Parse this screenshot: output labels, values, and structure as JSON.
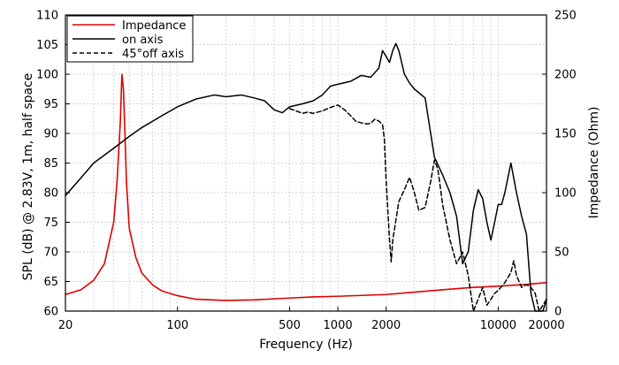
{
  "chart_data": {
    "type": "line",
    "xlabel": "Frequency (Hz)",
    "ylabel_left": "SPL (dB) @ 2.83V, 1m, half space",
    "ylabel_right": "Impedance (Ohm)",
    "x_scale": "log",
    "xlim": [
      20,
      20000
    ],
    "ylim_left": [
      60,
      110
    ],
    "ylim_right": [
      0,
      250
    ],
    "grid": true,
    "legend_position": "top-left",
    "x_tick_labels": [
      "20",
      "100",
      "500",
      "1000",
      "2000",
      "10000",
      "20000"
    ],
    "x_tick_values": [
      20,
      100,
      500,
      1000,
      2000,
      10000,
      20000
    ],
    "y_left_ticks": [
      60,
      65,
      70,
      75,
      80,
      85,
      90,
      95,
      100,
      105,
      110
    ],
    "y_right_ticks": [
      0,
      50,
      100,
      150,
      200,
      250
    ],
    "series": [
      {
        "name": "Impedance",
        "axis": "right",
        "color": "#e00000",
        "style": "solid",
        "points": [
          [
            20,
            14
          ],
          [
            25,
            18
          ],
          [
            30,
            26
          ],
          [
            35,
            40
          ],
          [
            40,
            75
          ],
          [
            42,
            110
          ],
          [
            44,
            160
          ],
          [
            45,
            200
          ],
          [
            46,
            187
          ],
          [
            47,
            150
          ],
          [
            48,
            110
          ],
          [
            50,
            70
          ],
          [
            55,
            45
          ],
          [
            60,
            32
          ],
          [
            70,
            22
          ],
          [
            80,
            17
          ],
          [
            100,
            13
          ],
          [
            130,
            10
          ],
          [
            200,
            9
          ],
          [
            300,
            9.5
          ],
          [
            500,
            11
          ],
          [
            700,
            12
          ],
          [
            1000,
            12.5
          ],
          [
            2000,
            14
          ],
          [
            3000,
            16
          ],
          [
            5000,
            18.5
          ],
          [
            7000,
            20
          ],
          [
            10000,
            21
          ],
          [
            15000,
            22.5
          ],
          [
            20000,
            24
          ]
        ]
      },
      {
        "name": "on axis",
        "axis": "left",
        "color": "#000000",
        "style": "solid",
        "points": [
          [
            20,
            79.5
          ],
          [
            25,
            82.5
          ],
          [
            30,
            85
          ],
          [
            40,
            87.5
          ],
          [
            50,
            89.5
          ],
          [
            60,
            91
          ],
          [
            80,
            93
          ],
          [
            100,
            94.5
          ],
          [
            130,
            95.8
          ],
          [
            170,
            96.5
          ],
          [
            200,
            96.2
          ],
          [
            250,
            96.5
          ],
          [
            300,
            96
          ],
          [
            350,
            95.5
          ],
          [
            400,
            94
          ],
          [
            450,
            93.5
          ],
          [
            500,
            94.5
          ],
          [
            600,
            95
          ],
          [
            700,
            95.5
          ],
          [
            800,
            96.5
          ],
          [
            900,
            98
          ],
          [
            1000,
            98.3
          ],
          [
            1200,
            98.8
          ],
          [
            1400,
            99.8
          ],
          [
            1600,
            99.5
          ],
          [
            1800,
            101
          ],
          [
            1900,
            104
          ],
          [
            2000,
            103
          ],
          [
            2100,
            102
          ],
          [
            2200,
            104
          ],
          [
            2300,
            105.2
          ],
          [
            2400,
            104
          ],
          [
            2600,
            100
          ],
          [
            2800,
            98.5
          ],
          [
            3000,
            97.5
          ],
          [
            3500,
            96
          ],
          [
            4000,
            86
          ],
          [
            4500,
            83
          ],
          [
            5000,
            80
          ],
          [
            5500,
            76
          ],
          [
            6000,
            68
          ],
          [
            6500,
            70
          ],
          [
            7000,
            77
          ],
          [
            7500,
            80.5
          ],
          [
            8000,
            79
          ],
          [
            8500,
            75
          ],
          [
            9000,
            72
          ],
          [
            9500,
            75
          ],
          [
            10000,
            78
          ],
          [
            10500,
            78
          ],
          [
            11000,
            80
          ],
          [
            12000,
            85
          ],
          [
            13000,
            80
          ],
          [
            14000,
            76
          ],
          [
            15000,
            73
          ],
          [
            16000,
            63
          ],
          [
            17000,
            58
          ],
          [
            18000,
            56
          ],
          [
            19000,
            60
          ],
          [
            20000,
            62
          ]
        ]
      },
      {
        "name": "45°off axis",
        "axis": "left",
        "color": "#000000",
        "style": "dashed",
        "points": [
          [
            500,
            94.2
          ],
          [
            550,
            93.8
          ],
          [
            600,
            93.4
          ],
          [
            650,
            93.6
          ],
          [
            700,
            93.4
          ],
          [
            800,
            93.8
          ],
          [
            900,
            94.4
          ],
          [
            1000,
            94.8
          ],
          [
            1100,
            94
          ],
          [
            1200,
            93
          ],
          [
            1300,
            92
          ],
          [
            1400,
            91.8
          ],
          [
            1500,
            91.6
          ],
          [
            1600,
            91.7
          ],
          [
            1700,
            92.4
          ],
          [
            1800,
            92.1
          ],
          [
            1900,
            91.5
          ],
          [
            1950,
            89
          ],
          [
            2000,
            82
          ],
          [
            2100,
            72
          ],
          [
            2150,
            68.3
          ],
          [
            2200,
            72
          ],
          [
            2400,
            78.5
          ],
          [
            2600,
            80.5
          ],
          [
            2800,
            82.6
          ],
          [
            3000,
            80
          ],
          [
            3200,
            77
          ],
          [
            3500,
            77.5
          ],
          [
            3800,
            82
          ],
          [
            4000,
            85.5
          ],
          [
            4200,
            84
          ],
          [
            4500,
            78
          ],
          [
            5000,
            72
          ],
          [
            5500,
            68
          ],
          [
            6000,
            70
          ],
          [
            6500,
            66
          ],
          [
            7000,
            60
          ],
          [
            7500,
            62
          ],
          [
            8000,
            64
          ],
          [
            8500,
            61
          ],
          [
            9000,
            62
          ],
          [
            9500,
            63
          ],
          [
            10000,
            63.5
          ],
          [
            11000,
            64.8
          ],
          [
            12000,
            66.5
          ],
          [
            12500,
            68.5
          ],
          [
            13000,
            66
          ],
          [
            14000,
            64
          ],
          [
            15000,
            64.5
          ],
          [
            16000,
            64
          ],
          [
            17000,
            63
          ],
          [
            18000,
            60
          ],
          [
            19000,
            61
          ],
          [
            20000,
            62
          ]
        ]
      }
    ]
  }
}
